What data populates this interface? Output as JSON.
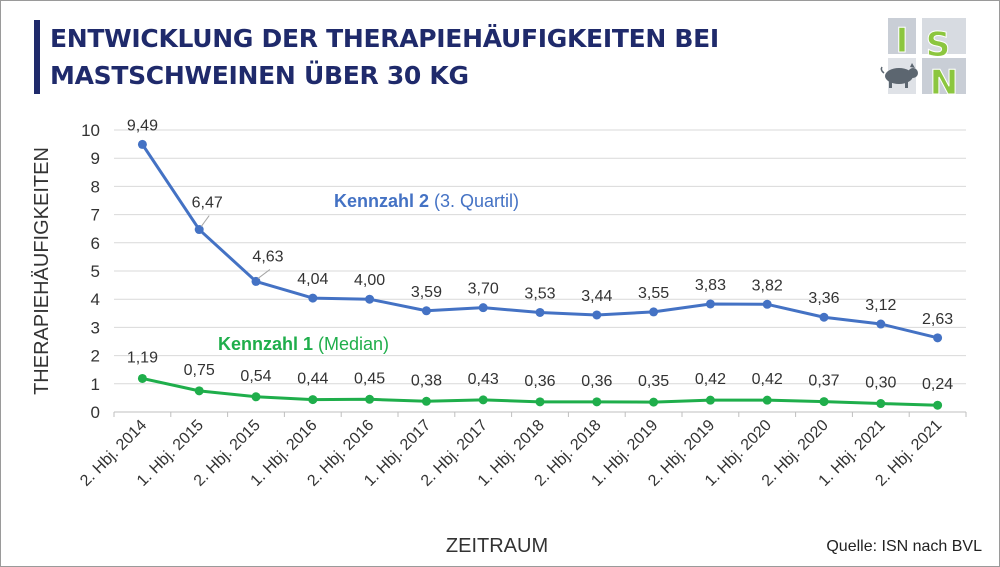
{
  "title": {
    "line1": "ENTWICKLUNG DER THERAPIEHÄUFIGKEITEN BEI",
    "line2": "MASTSCHWEINEN ÜBER 30 KG"
  },
  "logo": {
    "text": "ISN",
    "icon": "pig-icon",
    "colors": {
      "green": "#8cc63f",
      "gray": "#c9ced6"
    }
  },
  "source": "Quelle: ISN nach BVL",
  "colors": {
    "series1": "#1fae4b",
    "series2": "#4472c4",
    "title": "#1f2a6b",
    "grid": "#d9d9d9"
  },
  "chart_data": {
    "type": "line",
    "title": "ENTWICKLUNG DER THERAPIEHÄUFIGKEITEN BEI MASTSCHWEINEN ÜBER 30 KG",
    "xlabel": "ZEITRAUM",
    "ylabel": "THERAPIEHÄUFIGKEITEN",
    "ylim": [
      0,
      10
    ],
    "yticks": [
      "0",
      "1",
      "2",
      "3",
      "4",
      "5",
      "6",
      "7",
      "8",
      "9",
      "10"
    ],
    "grid": true,
    "categories": [
      "2. Hbj. 2014",
      "1. Hbj. 2015",
      "2. Hbj. 2015",
      "1. Hbj. 2016",
      "2. Hbj. 2016",
      "1. Hbj. 2017",
      "2. Hbj. 2017",
      "1. Hbj. 2018",
      "2. Hbj. 2018",
      "1. Hbj. 2019",
      "2. Hbj. 2019",
      "1. Hbj. 2020",
      "2. Hbj. 2020",
      "1. Hbj. 2021",
      "2. Hbj. 2021"
    ],
    "series": [
      {
        "name": "Kennzahl 2",
        "name_suffix": "(3. Quartil)",
        "values": [
          9.49,
          6.47,
          4.63,
          4.04,
          4.0,
          3.59,
          3.7,
          3.53,
          3.44,
          3.55,
          3.83,
          3.82,
          3.36,
          3.12,
          2.63
        ],
        "labels": [
          "9,49",
          "6,47",
          "4,63",
          "4,04",
          "4,00",
          "3,59",
          "3,70",
          "3,53",
          "3,44",
          "3,55",
          "3,83",
          "3,82",
          "3,36",
          "3,12",
          "2,63"
        ]
      },
      {
        "name": "Kennzahl 1",
        "name_suffix": "(Median)",
        "values": [
          1.19,
          0.75,
          0.54,
          0.44,
          0.45,
          0.38,
          0.43,
          0.36,
          0.36,
          0.35,
          0.42,
          0.42,
          0.37,
          0.3,
          0.24
        ],
        "labels": [
          "1,19",
          "0,75",
          "0,54",
          "0,44",
          "0,45",
          "0,38",
          "0,43",
          "0,36",
          "0,36",
          "0,35",
          "0,42",
          "0,42",
          "0,37",
          "0,30",
          "0,24"
        ]
      }
    ]
  }
}
